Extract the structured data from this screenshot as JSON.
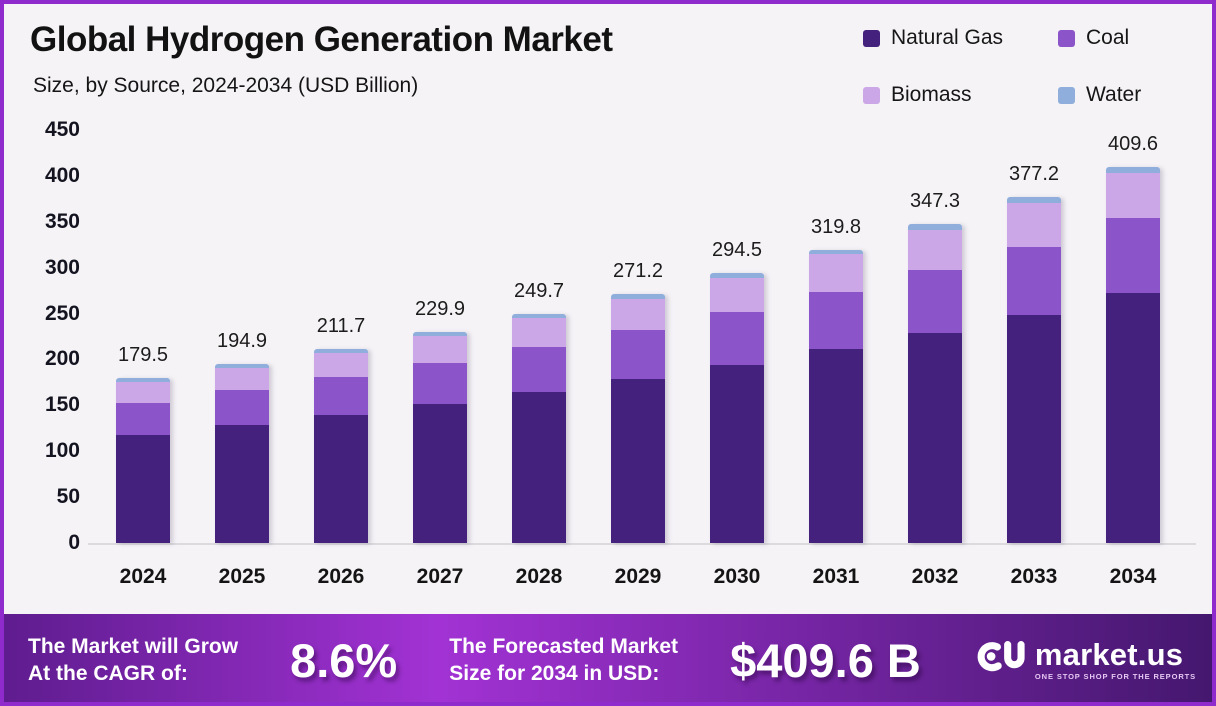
{
  "frame": {
    "border_color": "#8F2ACD",
    "background": "#F5F3F6"
  },
  "header": {
    "title": "Global Hydrogen Generation Market",
    "subtitle": "Size, by Source, 2024-2034 (USD Billion)"
  },
  "chart_data": {
    "type": "bar",
    "stacked": true,
    "title": "Global Hydrogen Generation Market Size, by Source, 2024-2034 (USD Billion)",
    "categories": [
      "2024",
      "2025",
      "2026",
      "2027",
      "2028",
      "2029",
      "2030",
      "2031",
      "2032",
      "2033",
      "2034"
    ],
    "series": [
      {
        "name": "Natural Gas",
        "color": "#45217E",
        "values": [
          118.0,
          128.5,
          139.5,
          151.5,
          164.5,
          178.5,
          194.0,
          211.0,
          228.5,
          248.0,
          272.0
        ]
      },
      {
        "name": "Coal",
        "color": "#8C54C9",
        "values": [
          35.0,
          38.0,
          41.5,
          45.0,
          49.0,
          53.5,
          58.0,
          62.5,
          68.5,
          74.5,
          82.0
        ]
      },
      {
        "name": "Biomass",
        "color": "#CBA7E8",
        "values": [
          22.5,
          24.4,
          26.5,
          28.9,
          31.5,
          34.2,
          37.2,
          41.5,
          44.3,
          48.3,
          49.0
        ]
      },
      {
        "name": "Water",
        "color": "#8FAEDC",
        "values": [
          4.0,
          4.0,
          4.2,
          4.5,
          4.7,
          5.0,
          5.3,
          4.8,
          6.0,
          6.4,
          6.6
        ]
      }
    ],
    "totals": [
      179.5,
      194.9,
      211.7,
      229.9,
      249.7,
      271.2,
      294.5,
      319.8,
      347.3,
      377.2,
      409.6
    ],
    "xlabel": "",
    "ylabel": "",
    "ylim": [
      0,
      450
    ],
    "yticks": [
      0,
      50,
      100,
      150,
      200,
      250,
      300,
      350,
      400,
      450
    ],
    "grid": false,
    "legend_position": "top-right"
  },
  "banner": {
    "cagr_line1": "The Market will Grow",
    "cagr_line2": "At the CAGR of:",
    "cagr_value": "8.6%",
    "forecast_line1": "The Forecasted Market",
    "forecast_line2": "Size for 2034 in USD:",
    "forecast_value": "$409.6 B",
    "logo_text": "market.us",
    "logo_tagline": "ONE STOP SHOP FOR THE REPORTS",
    "gradient": [
      "#5E1C8E",
      "#A232D4",
      "#44176E"
    ]
  }
}
